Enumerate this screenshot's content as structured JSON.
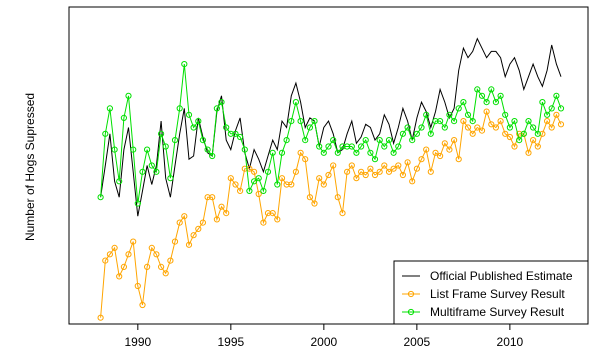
{
  "chart_data": {
    "type": "line",
    "title": "",
    "xlabel": "",
    "ylabel": "Number of Hogs Supressed",
    "xlim": [
      1986.3,
      2014.2
    ],
    "ylim": [
      0,
      100
    ],
    "grid": false,
    "legend_position": "bottom-right",
    "x_ticks": [
      1990,
      1995,
      2000,
      2005,
      2010
    ],
    "x_tick_labels": [
      "1990",
      "1995",
      "2000",
      "2005",
      "2010"
    ],
    "series": [
      {
        "name": "Official Published Estimate",
        "color": "#000000",
        "marker": "none",
        "x": [
          1988.0,
          1988.25,
          1988.5,
          1988.75,
          1989.0,
          1989.25,
          1989.5,
          1989.75,
          1990.0,
          1990.25,
          1990.5,
          1990.75,
          1991.0,
          1991.25,
          1991.5,
          1991.75,
          1992.0,
          1992.25,
          1992.5,
          1992.75,
          1993.0,
          1993.25,
          1993.5,
          1993.75,
          1994.0,
          1994.25,
          1994.5,
          1994.75,
          1995.0,
          1995.25,
          1995.5,
          1995.75,
          1996.0,
          1996.25,
          1996.5,
          1996.75,
          1997.0,
          1997.25,
          1997.5,
          1997.75,
          1998.0,
          1998.25,
          1998.5,
          1998.75,
          1999.0,
          1999.25,
          1999.5,
          1999.75,
          2000.0,
          2000.25,
          2000.5,
          2000.75,
          2001.0,
          2001.25,
          2001.5,
          2001.75,
          2002.0,
          2002.25,
          2002.5,
          2002.75,
          2003.0,
          2003.25,
          2003.5,
          2003.75,
          2004.0,
          2004.25,
          2004.5,
          2004.75,
          2005.0,
          2005.25,
          2005.5,
          2005.75,
          2006.0,
          2006.25,
          2006.5,
          2006.75,
          2007.0,
          2007.25,
          2007.5,
          2007.75,
          2008.0,
          2008.25,
          2008.5,
          2008.75,
          2009.0,
          2009.25,
          2009.5,
          2009.75,
          2010.0,
          2010.25,
          2010.5,
          2010.75,
          2011.0,
          2011.25,
          2011.5,
          2011.75,
          2012.0,
          2012.25,
          2012.5,
          2012.75
        ],
        "values": [
          40,
          50,
          60,
          45,
          40,
          55,
          62,
          48,
          34,
          42,
          50,
          44,
          50,
          64,
          46,
          40,
          50,
          60,
          68,
          52,
          53,
          65,
          59,
          54,
          53,
          67,
          72,
          58,
          55,
          61,
          65,
          54,
          49,
          55,
          52,
          48,
          53,
          58,
          55,
          64,
          62,
          72,
          76,
          70,
          62,
          65,
          64,
          56,
          62,
          64,
          60,
          54,
          55,
          60,
          64,
          57,
          59,
          63,
          62,
          58,
          60,
          66,
          63,
          57,
          62,
          68,
          64,
          58,
          65,
          70,
          67,
          62,
          67,
          74,
          70,
          65,
          68,
          80,
          87,
          84,
          86,
          90,
          87,
          84,
          86,
          86,
          84,
          78,
          82,
          84,
          80,
          74,
          78,
          82,
          78,
          75,
          80,
          88,
          82,
          78
        ]
      },
      {
        "name": "List Frame Survey Result",
        "color": "#FFA500",
        "marker": "circle",
        "x": [
          1988.0,
          1988.25,
          1988.5,
          1988.75,
          1989.0,
          1989.25,
          1989.5,
          1989.75,
          1990.0,
          1990.25,
          1990.5,
          1990.75,
          1991.0,
          1991.25,
          1991.5,
          1991.75,
          1992.0,
          1992.25,
          1992.5,
          1992.75,
          1993.0,
          1993.25,
          1993.5,
          1993.75,
          1994.0,
          1994.25,
          1994.5,
          1994.75,
          1995.0,
          1995.25,
          1995.5,
          1995.75,
          1996.0,
          1996.25,
          1996.5,
          1996.75,
          1997.0,
          1997.25,
          1997.5,
          1997.75,
          1998.0,
          1998.25,
          1998.5,
          1998.75,
          1999.0,
          1999.25,
          1999.5,
          1999.75,
          2000.0,
          2000.25,
          2000.5,
          2000.75,
          2001.0,
          2001.25,
          2001.5,
          2001.75,
          2002.0,
          2002.25,
          2002.5,
          2002.75,
          2003.0,
          2003.25,
          2003.5,
          2003.75,
          2004.0,
          2004.25,
          2004.5,
          2004.75,
          2005.0,
          2005.25,
          2005.5,
          2005.75,
          2006.0,
          2006.25,
          2006.5,
          2006.75,
          2007.0,
          2007.25,
          2007.5,
          2007.75,
          2008.0,
          2008.25,
          2008.5,
          2008.75,
          2009.0,
          2009.25,
          2009.5,
          2009.75,
          2010.0,
          2010.25,
          2010.5,
          2010.75,
          2011.0,
          2011.25,
          2011.5,
          2011.75,
          2012.0,
          2012.25,
          2012.5,
          2012.75
        ],
        "values": [
          2,
          20,
          22,
          24,
          15,
          18,
          22,
          26,
          12,
          6,
          18,
          24,
          22,
          18,
          16,
          20,
          26,
          32,
          34,
          25,
          28,
          30,
          32,
          40,
          40,
          33,
          37,
          35,
          46,
          44,
          42,
          49,
          49,
          48,
          41,
          32,
          35,
          35,
          33,
          46,
          44,
          44,
          48,
          54,
          52,
          40,
          38,
          46,
          44,
          47,
          50,
          40,
          35,
          48,
          50,
          46,
          48,
          47,
          49,
          47,
          48,
          50,
          48,
          49,
          50,
          47,
          51,
          45,
          49,
          52,
          55,
          48,
          54,
          53,
          57,
          55,
          58,
          52,
          64,
          62,
          60,
          62,
          61,
          67,
          63,
          62,
          64,
          60,
          59,
          56,
          60,
          60,
          54,
          58,
          56,
          60,
          64,
          62,
          66,
          63
        ]
      },
      {
        "name": "Multiframe Survey Result",
        "color": "#00E000",
        "marker": "circle",
        "x": [
          1988.0,
          1988.25,
          1988.5,
          1988.75,
          1989.0,
          1989.25,
          1989.5,
          1989.75,
          1990.0,
          1990.25,
          1990.5,
          1990.75,
          1991.0,
          1991.25,
          1991.5,
          1991.75,
          1992.0,
          1992.25,
          1992.5,
          1992.75,
          1993.0,
          1993.25,
          1993.5,
          1993.75,
          1994.0,
          1994.25,
          1994.5,
          1994.75,
          1995.0,
          1995.25,
          1995.5,
          1995.75,
          1996.0,
          1996.25,
          1996.5,
          1996.75,
          1997.0,
          1997.25,
          1997.5,
          1997.75,
          1998.0,
          1998.25,
          1998.5,
          1998.75,
          1999.0,
          1999.25,
          1999.5,
          1999.75,
          2000.0,
          2000.25,
          2000.5,
          2000.75,
          2001.0,
          2001.25,
          2001.5,
          2001.75,
          2002.0,
          2002.25,
          2002.5,
          2002.75,
          2003.0,
          2003.25,
          2003.5,
          2003.75,
          2004.0,
          2004.25,
          2004.5,
          2004.75,
          2005.0,
          2005.25,
          2005.5,
          2005.75,
          2006.0,
          2006.25,
          2006.5,
          2006.75,
          2007.0,
          2007.25,
          2007.5,
          2007.75,
          2008.0,
          2008.25,
          2008.5,
          2008.75,
          2009.0,
          2009.25,
          2009.5,
          2009.75,
          2010.0,
          2010.25,
          2010.5,
          2010.75,
          2011.0,
          2011.25,
          2011.5,
          2011.75,
          2012.0,
          2012.25,
          2012.5,
          2012.75
        ],
        "values": [
          40,
          60,
          68,
          55,
          45,
          65,
          72,
          55,
          38,
          48,
          55,
          50,
          48,
          60,
          56,
          46,
          58,
          68,
          82,
          66,
          62,
          64,
          58,
          55,
          53,
          68,
          70,
          62,
          60,
          60,
          59,
          55,
          42,
          45,
          46,
          42,
          48,
          54,
          44,
          54,
          58,
          64,
          70,
          64,
          58,
          62,
          64,
          56,
          54,
          56,
          58,
          54,
          56,
          56,
          56,
          54,
          56,
          58,
          54,
          52,
          58,
          56,
          58,
          54,
          56,
          60,
          62,
          58,
          60,
          62,
          66,
          60,
          64,
          64,
          62,
          66,
          64,
          68,
          70,
          66,
          64,
          74,
          72,
          70,
          74,
          70,
          72,
          66,
          62,
          64,
          58,
          60,
          64,
          62,
          60,
          70,
          66,
          68,
          72,
          68
        ]
      }
    ]
  }
}
